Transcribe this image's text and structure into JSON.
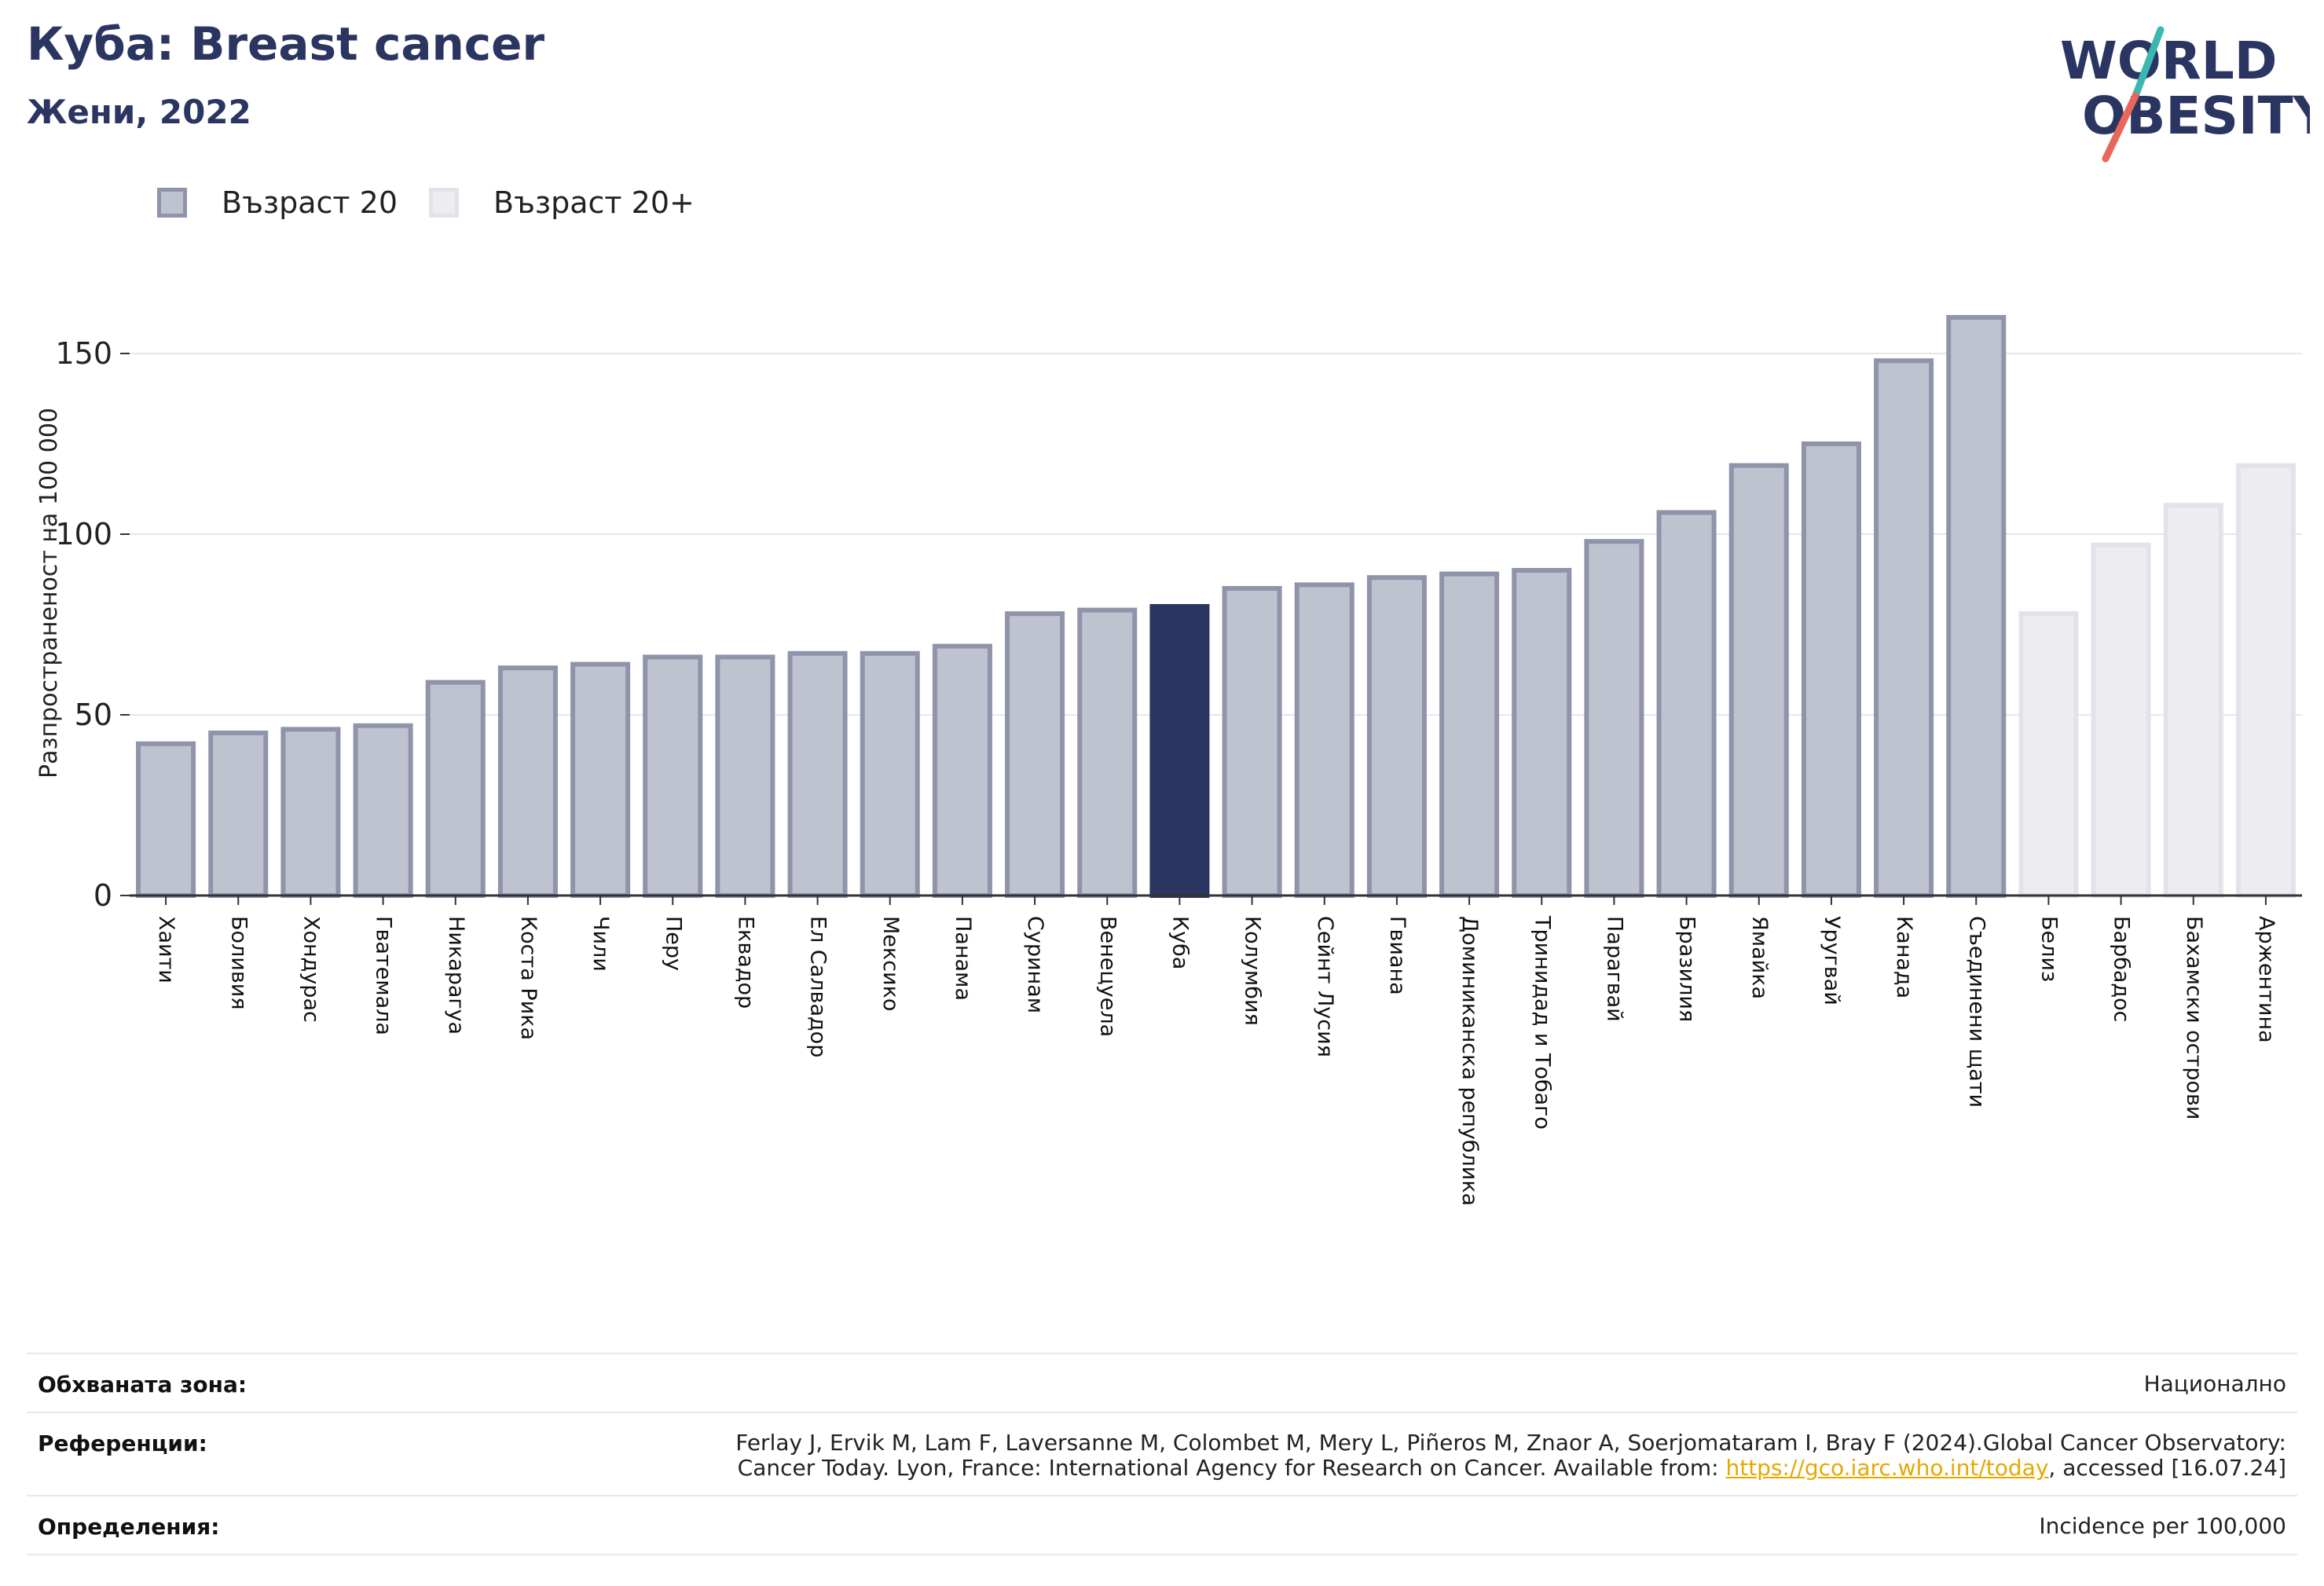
{
  "header": {
    "title": "Куба: Breast cancer",
    "subtitle": "Жени, 2022",
    "logo_text_top": "WORLD",
    "logo_text_bottom": "OBESITY"
  },
  "legend": {
    "items": [
      {
        "label": "Възраст 20",
        "color": "#bfc2cf",
        "border": "#8f94ab"
      },
      {
        "label": "Възраст 20+",
        "color": "#ededf1",
        "border": "#e2e3ea"
      }
    ]
  },
  "chart_data": {
    "type": "bar",
    "ylabel": "Разпространеност  на 100 000",
    "ylim": [
      0,
      175
    ],
    "yticks": [
      0,
      50,
      100,
      150
    ],
    "grid": true,
    "legend_position": "top-left",
    "highlight": "Куба",
    "colors": {
      "age20_fill": "#bfc2cf",
      "age20_border": "#8f94ab",
      "age20plus_fill": "#ededf1",
      "age20plus_border": "#e2e3ea",
      "highlight": "#2a3561"
    },
    "categories": [
      "Хаити",
      "Боливия",
      "Хондурас",
      "Гватемала",
      "Никарагуа",
      "Коста Рика",
      "Чили",
      "Перу",
      "Еквадор",
      "Ел Салвадор",
      "Мексико",
      "Панама",
      "Суринам",
      "Венецуела",
      "Куба",
      "Колумбия",
      "Сейнт Лусия",
      "Гвиана",
      "Доминиканска република",
      "Тринидад и Тобаго",
      "Парагвай",
      "Бразилия",
      "Ямайка",
      "Уругвай",
      "Канада",
      "Съединени щати",
      "Белиз",
      "Барбадос",
      "Бахамски острови",
      "Аржентина"
    ],
    "values": [
      42,
      45,
      46,
      47,
      59,
      63,
      64,
      66,
      66,
      67,
      67,
      69,
      78,
      79,
      80,
      85,
      86,
      88,
      89,
      90,
      98,
      106,
      119,
      125,
      148,
      160,
      78,
      97,
      108,
      119
    ],
    "series": [
      "Възраст 20",
      "Възраст 20",
      "Възраст 20",
      "Възраст 20",
      "Възраст 20",
      "Възраст 20",
      "Възраст 20",
      "Възраст 20",
      "Възраст 20",
      "Възраст 20",
      "Възраст 20",
      "Възраст 20",
      "Възраст 20",
      "Възраст 20",
      "Възраст 20",
      "Възраст 20",
      "Възраст 20",
      "Възраст 20",
      "Възраст 20",
      "Възраст 20",
      "Възраст 20",
      "Възраст 20",
      "Възраст 20",
      "Възраст 20",
      "Възраст 20",
      "Възраст 20",
      "Възраст 20+",
      "Възраст 20+",
      "Възраст 20+",
      "Възраст 20+"
    ]
  },
  "footer": {
    "coverage_label": "Обхваната зона:",
    "coverage_value": "Национално",
    "references_label": "Референции:",
    "references_line1": "Ferlay J, Ervik M, Lam F, Laversanne M, Colombet M, Mery L, Piñeros M, Znaor A, Soerjomataram I, Bray F (2024).Global Cancer Observatory:",
    "references_line2_pre": "Cancer Today. Lyon, France: International Agency for Research on Cancer. Available from: ",
    "references_link": "https://gco.iarc.who.int/today",
    "references_line2_post": ", accessed [16.07.24]",
    "definitions_label": "Определения:",
    "definitions_value": "Incidence per 100,000"
  }
}
